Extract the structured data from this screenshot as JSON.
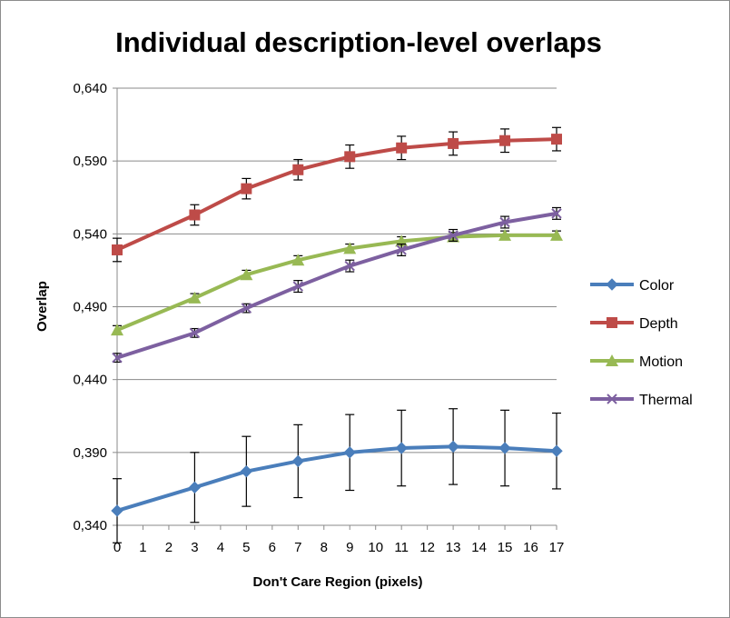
{
  "chart_data": {
    "type": "line",
    "title": "Individual description-level overlaps",
    "xlabel": "Don't Care Region (pixels)",
    "ylabel": "Overlap",
    "x_tick_labels": [
      "0",
      "1",
      "2",
      "3",
      "4",
      "5",
      "6",
      "7",
      "8",
      "9",
      "10",
      "11",
      "12",
      "13",
      "14",
      "15",
      "16",
      "17"
    ],
    "y_tick_labels": [
      "0,340",
      "0,390",
      "0,440",
      "0,490",
      "0,540",
      "0,590",
      "0,640"
    ],
    "ylim": [
      0.34,
      0.64
    ],
    "x_positions": [
      0,
      3,
      5,
      7,
      9,
      11,
      13,
      15,
      17
    ],
    "grid": "horizontal",
    "legend_position": "right",
    "series": [
      {
        "name": "Color",
        "color": "#4a7ebb",
        "marker": "diamond",
        "values": [
          0.35,
          0.366,
          0.377,
          0.384,
          0.39,
          0.393,
          0.394,
          0.393,
          0.391
        ],
        "error": [
          0.022,
          0.024,
          0.024,
          0.025,
          0.026,
          0.026,
          0.026,
          0.026,
          0.026
        ]
      },
      {
        "name": "Depth",
        "color": "#be4b48",
        "marker": "square",
        "values": [
          0.529,
          0.553,
          0.571,
          0.584,
          0.593,
          0.599,
          0.602,
          0.604,
          0.605
        ],
        "error": [
          0.008,
          0.007,
          0.007,
          0.007,
          0.008,
          0.008,
          0.008,
          0.008,
          0.008
        ]
      },
      {
        "name": "Motion",
        "color": "#98b954",
        "marker": "triangle",
        "values": [
          0.474,
          0.496,
          0.512,
          0.522,
          0.53,
          0.535,
          0.538,
          0.539,
          0.539
        ],
        "error": [
          0.003,
          0.003,
          0.003,
          0.003,
          0.003,
          0.003,
          0.003,
          0.003,
          0.003
        ]
      },
      {
        "name": "Thermal",
        "color": "#7d60a0",
        "marker": "x",
        "values": [
          0.455,
          0.472,
          0.489,
          0.504,
          0.518,
          0.529,
          0.539,
          0.548,
          0.554
        ],
        "error": [
          0.003,
          0.003,
          0.003,
          0.004,
          0.004,
          0.004,
          0.004,
          0.004,
          0.004
        ]
      }
    ]
  }
}
